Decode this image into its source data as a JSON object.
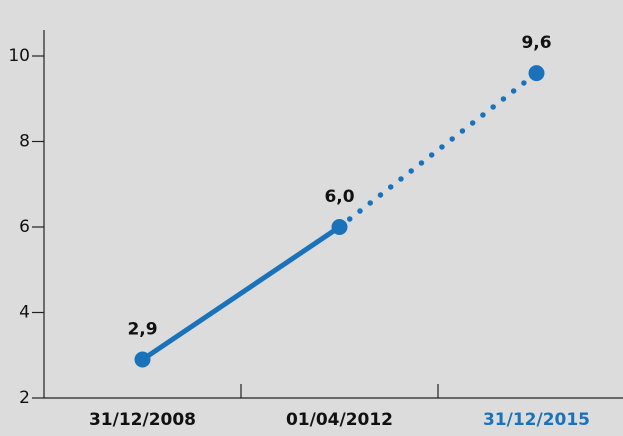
{
  "chart_data": {
    "type": "line",
    "categories": [
      "31/12/2008",
      "01/04/2012",
      "31/12/2015"
    ],
    "values": [
      2.9,
      6.0,
      9.6
    ],
    "value_labels": [
      "2,9",
      "6,0",
      "9,6"
    ],
    "color": "#1a73ba",
    "segment_styles": [
      "solid",
      "dotted"
    ],
    "category_colors": [
      "#111111",
      "#111111",
      "#1a73ba"
    ],
    "ylim": [
      2,
      10
    ],
    "yticks": [
      2,
      4,
      6,
      8,
      10
    ]
  }
}
